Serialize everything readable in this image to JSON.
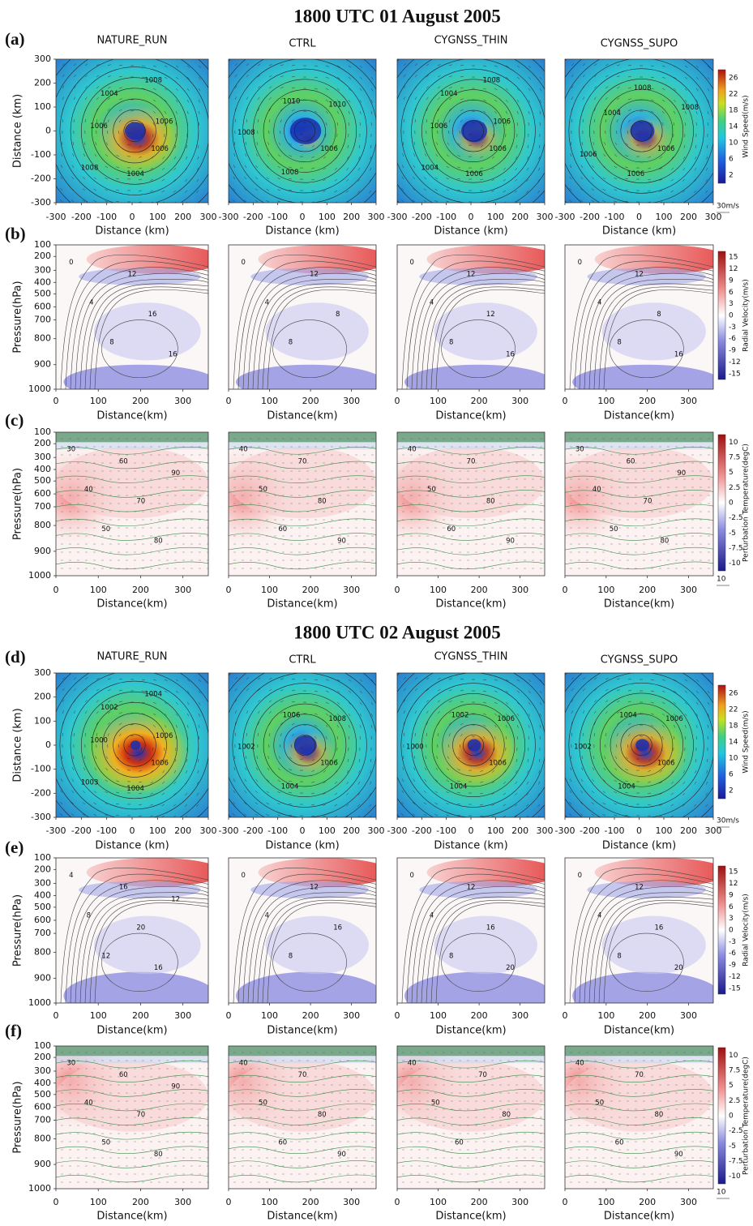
{
  "sections": [
    {
      "title": "1800 UTC 01 August 2005",
      "column_titles": [
        "NATURE_RUN",
        "CTRL",
        "CYGNSS_THIN",
        "CYGNSS_SUPO"
      ],
      "rows": [
        {
          "label": "(a)",
          "y_label": "Distance (km)",
          "y_ticks": [
            300,
            200,
            100,
            0,
            -100,
            -200,
            -300
          ],
          "x_label": "Distance (km)",
          "x_ticks": [
            -300,
            -200,
            -100,
            0,
            100,
            200,
            300
          ],
          "colorbar_label": "Wind Speed(m/s)",
          "colorbar_ticks": [
            26,
            22,
            18,
            14,
            10,
            6,
            2
          ],
          "vector_ref": "30m/s",
          "contour_labels": [
            [
              1006,
              1004,
              1008,
              1006,
              1004,
              1008,
              1006
            ],
            [
              1006,
              1008,
              1008,
              1010,
              1010
            ],
            [
              1006,
              1006,
              1004,
              1006,
              1004,
              1008,
              1006
            ],
            [
              1006,
              1006,
              1006,
              1004,
              1008,
              1008
            ]
          ]
        },
        {
          "label": "(b)",
          "y_label": "Pressure(hPa)",
          "y_ticks": [
            100,
            200,
            300,
            400,
            500,
            600,
            700,
            800,
            900,
            1000
          ],
          "x_label": "Distance(km)",
          "x_ticks": [
            0,
            100,
            200,
            300
          ],
          "colorbar_label": "Radial Velocity(m/s)",
          "colorbar_ticks": [
            15,
            12,
            9,
            6,
            3,
            0,
            -3,
            -6,
            -9,
            -12,
            -15
          ],
          "contour_labels": [
            [
              0,
              4,
              8,
              12,
              16,
              16
            ],
            [
              0,
              4,
              8,
              12,
              8
            ],
            [
              0,
              4,
              8,
              12,
              12,
              16
            ],
            [
              0,
              4,
              8,
              12,
              8,
              16
            ]
          ]
        },
        {
          "label": "(c)",
          "y_label": "Pressure(hPa)",
          "y_ticks": [
            100,
            200,
            300,
            400,
            500,
            600,
            700,
            800,
            900,
            1000
          ],
          "x_label": "Distance(km)",
          "x_ticks": [
            0,
            100,
            200,
            300
          ],
          "colorbar_label": "Perturbation Temperature(degC)",
          "colorbar_ticks": [
            10,
            7.5,
            5,
            2.5,
            0,
            -2.5,
            -5,
            -7.5,
            -10
          ],
          "vector_ref": "10",
          "contour_labels": [
            [
              30,
              40,
              50,
              60,
              70,
              80,
              90
            ],
            [
              40,
              50,
              60,
              70,
              80,
              90
            ],
            [
              40,
              50,
              60,
              70,
              80,
              90
            ],
            [
              30,
              40,
              50,
              60,
              70,
              80,
              90
            ]
          ]
        }
      ]
    },
    {
      "title": "1800 UTC 02 August 2005",
      "column_titles": [
        "NATURE_RUN",
        "CTRL",
        "CYGNSS_THIN",
        "CYGNSS_SUPO"
      ],
      "rows": [
        {
          "label": "(d)",
          "y_label": "Distance (km)",
          "y_ticks": [
            300,
            200,
            100,
            0,
            -100,
            -200,
            -300
          ],
          "x_label": "Distance (km)",
          "x_ticks": [
            -300,
            -200,
            -100,
            0,
            100,
            200,
            300
          ],
          "colorbar_label": "Wind Speed(m/s)",
          "colorbar_ticks": [
            26,
            22,
            18,
            14,
            10,
            6,
            2
          ],
          "vector_ref": "30m/s",
          "contour_labels": [
            [
              1006,
              1004,
              1003,
              1000,
              1002,
              1004,
              1006
            ],
            [
              1006,
              1004,
              1002,
              1006,
              1008
            ],
            [
              1006,
              1004,
              1000,
              1002,
              1006
            ],
            [
              1006,
              1004,
              1002,
              1004,
              1006
            ]
          ]
        },
        {
          "label": "(e)",
          "y_label": "Pressure(hPa)",
          "y_ticks": [
            100,
            200,
            300,
            400,
            500,
            600,
            700,
            800,
            900,
            1000
          ],
          "x_label": "Distance(km)",
          "x_ticks": [
            0,
            100,
            200,
            300
          ],
          "colorbar_label": "Radial Velocity(m/s)",
          "colorbar_ticks": [
            15,
            12,
            9,
            6,
            3,
            0,
            -3,
            -6,
            -9,
            -12,
            -15
          ],
          "contour_labels": [
            [
              4,
              8,
              12,
              16,
              20,
              16,
              12
            ],
            [
              0,
              4,
              8,
              12,
              16
            ],
            [
              0,
              4,
              8,
              12,
              16,
              20
            ],
            [
              0,
              4,
              8,
              12,
              16,
              20
            ]
          ]
        },
        {
          "label": "(f)",
          "y_label": "Pressure(hPa)",
          "y_ticks": [
            100,
            200,
            300,
            400,
            500,
            600,
            700,
            800,
            900,
            1000
          ],
          "x_label": "Distance(km)",
          "x_ticks": [
            0,
            100,
            200,
            300
          ],
          "colorbar_label": "Perturbation Temperature(degC)",
          "colorbar_ticks": [
            10,
            7.5,
            5,
            2.5,
            0,
            -2.5,
            -5,
            -7.5,
            -10
          ],
          "vector_ref": "10",
          "contour_labels": [
            [
              30,
              40,
              50,
              60,
              70,
              80,
              90
            ],
            [
              40,
              50,
              60,
              70,
              80,
              90
            ],
            [
              40,
              50,
              60,
              70,
              80
            ],
            [
              40,
              50,
              60,
              70,
              80,
              90
            ]
          ]
        }
      ]
    }
  ]
}
